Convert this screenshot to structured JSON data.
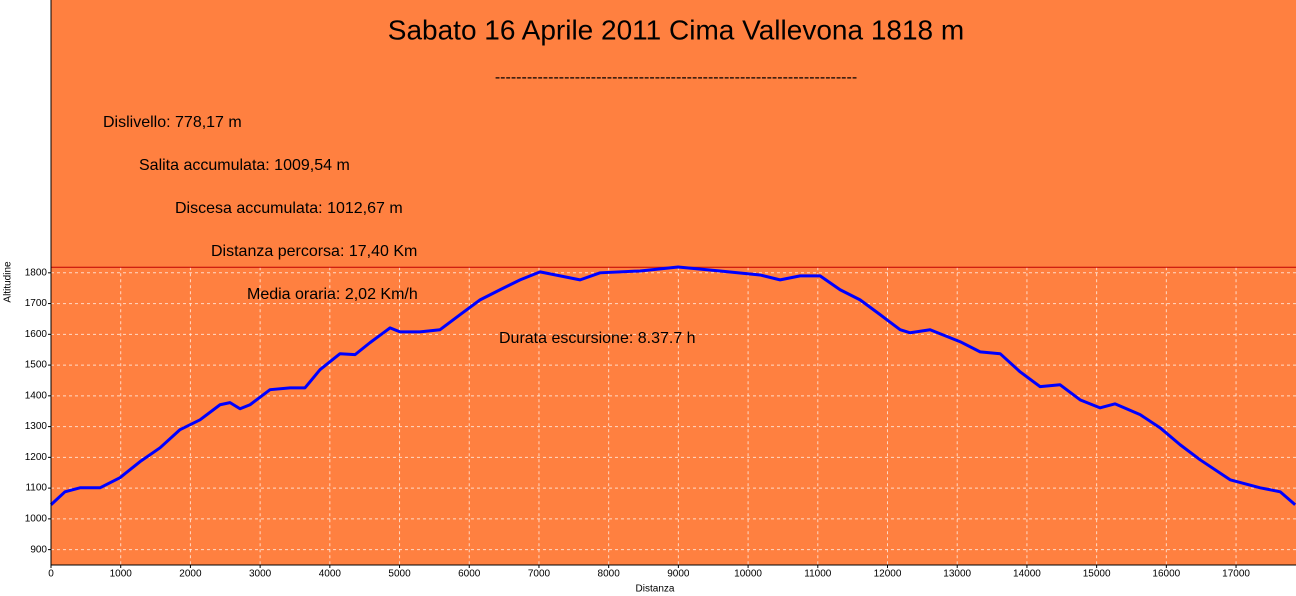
{
  "chart_data": {
    "type": "line",
    "title": "Sabato 16 Aprile 2011 Cima Vallevona 1818 m",
    "annotations": [
      "--------------------------------------------------------------------",
      "Dislivello: 778,17 m",
      "Salita accumulata: 1009,54 m",
      "Discesa accumulata: 1012,67 m",
      "Distanza percorsa: 17,40 Km",
      "Media oraria: 2,02 Km/h",
      "Durata escursione: 8.37.7 h"
    ],
    "x_label": "Distanza",
    "y_label": "Altitudine",
    "x": [
      0,
      200,
      416,
      703,
      990,
      1277,
      1564,
      1851,
      2138,
      2425,
      2568,
      2712,
      2855,
      3142,
      3429,
      3644,
      3859,
      4146,
      4362,
      4577,
      4864,
      5007,
      5294,
      5581,
      5868,
      6155,
      6442,
      6729,
      7016,
      7303,
      7590,
      7877,
      8451,
      8996,
      9598,
      10172,
      10459,
      10746,
      11033,
      11320,
      11607,
      11894,
      12181,
      12324,
      12611,
      13042,
      13329,
      13616,
      13902,
      14189,
      14476,
      14763,
      15050,
      15265,
      15624,
      15911,
      16198,
      16485,
      16915,
      17346,
      17633,
      17848
    ],
    "series": [
      {
        "color": "#0000ff",
        "values": [
          1046,
          1088,
          1101,
          1101,
          1134,
          1186,
          1231,
          1290,
          1322,
          1371,
          1378,
          1358,
          1371,
          1420,
          1426,
          1426,
          1485,
          1537,
          1534,
          1573,
          1621,
          1608,
          1608,
          1615,
          1664,
          1712,
          1745,
          1777,
          1803,
          1790,
          1777,
          1800,
          1806,
          1819,
          1806,
          1793,
          1777,
          1790,
          1790,
          1745,
          1712,
          1664,
          1615,
          1605,
          1615,
          1576,
          1543,
          1537,
          1478,
          1430,
          1436,
          1387,
          1361,
          1374,
          1339,
          1296,
          1241,
          1192,
          1127,
          1101,
          1088,
          1046
        ]
      }
    ],
    "xlim": [
      0,
      17860
    ],
    "ylim": [
      850,
      2687
    ],
    "xticks": [
      0,
      1000,
      2000,
      3000,
      4000,
      5000,
      6000,
      7000,
      8000,
      9000,
      10000,
      11000,
      12000,
      13000,
      14000,
      15000,
      16000,
      17000
    ],
    "yticks": [
      900,
      1000,
      1100,
      1200,
      1300,
      1400,
      1500,
      1600,
      1700,
      1800
    ],
    "hline": 1818,
    "hline_color": "#c00000",
    "background": "#ff8040",
    "grid": true
  }
}
